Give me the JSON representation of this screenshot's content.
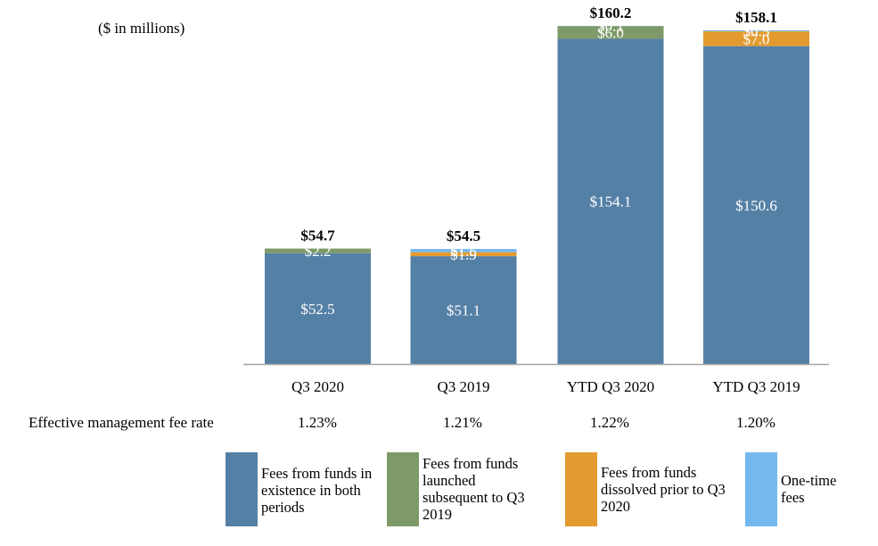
{
  "unit_note": "($ in millions)",
  "fee_rate": {
    "label": "Effective management fee rate",
    "values": [
      "1.23%",
      "1.21%",
      "1.22%",
      "1.20%"
    ]
  },
  "colors": {
    "existing": "#5580a6",
    "launched": "#7e9a68",
    "dissolved": "#e39b30",
    "one_time": "#75b8ed"
  },
  "legend": [
    {
      "label": "Fees from funds in existence in both periods",
      "color_key": "existing"
    },
    {
      "label": "Fees from funds launched subsequent to Q3 2019",
      "color_key": "launched"
    },
    {
      "label": "Fees from funds dissolved prior to Q3 2020",
      "color_key": "dissolved"
    },
    {
      "label": "One-time fees",
      "color_key": "one_time"
    }
  ],
  "chart_data": {
    "type": "bar",
    "stacked": true,
    "title": "",
    "xlabel": "",
    "ylabel": "($ in millions)",
    "ylim": [
      0,
      160.2
    ],
    "grid": false,
    "categories": [
      "Q3 2020",
      "Q3 2019",
      "YTD Q3 2020",
      "YTD Q3 2019"
    ],
    "totals": [
      "$54.7",
      "$54.5",
      "$160.2",
      "$158.1"
    ],
    "series": [
      {
        "name": "Fees from funds in existence in both periods",
        "color_key": "existing",
        "values": [
          52.5,
          51.1,
          154.1,
          150.6
        ],
        "labels": [
          "$52.5",
          "$51.1",
          "$154.1",
          "$150.6"
        ]
      },
      {
        "name": "Fees from funds launched subsequent to Q3 2019",
        "color_key": "launched",
        "values": [
          2.2,
          0,
          6.0,
          0
        ],
        "labels": [
          "$2.2",
          "",
          "$6.0",
          ""
        ]
      },
      {
        "name": "Fees from funds dissolved prior to Q3 2020",
        "color_key": "dissolved",
        "values": [
          0,
          1.9,
          0,
          7.0
        ],
        "labels": [
          "",
          "$1.9",
          "",
          "$7.0"
        ]
      },
      {
        "name": "One-time fees",
        "color_key": "one_time",
        "values": [
          0,
          1.5,
          0.1,
          0.5
        ],
        "labels": [
          "",
          "$1.5",
          "$0.1",
          "$0.5"
        ]
      }
    ]
  }
}
